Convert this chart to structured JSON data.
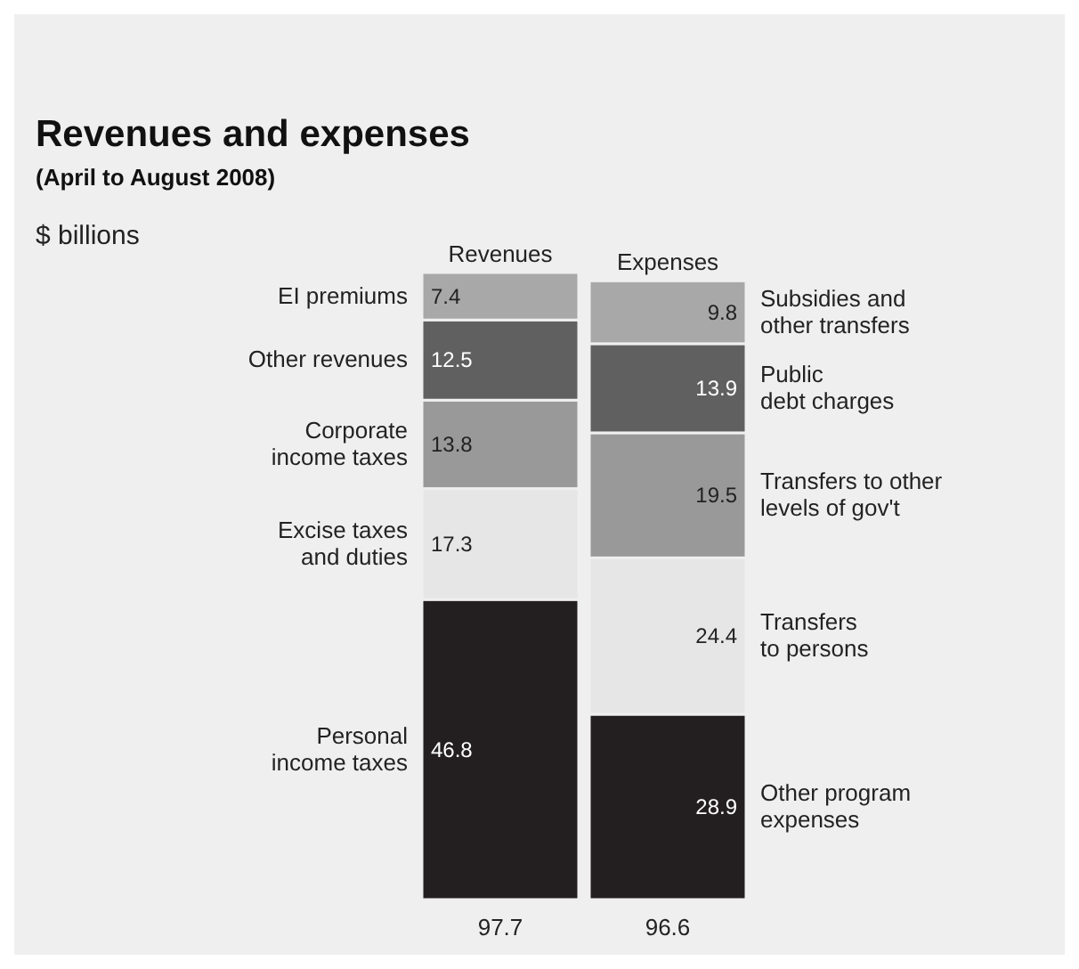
{
  "chart_data": {
    "type": "bar",
    "title": "Revenues and expenses",
    "subtitle": "(April to August 2008)",
    "annotations": [
      "$ billions"
    ],
    "categories": [
      "Revenues",
      "Expenses"
    ],
    "stacked": true,
    "data_labels": true,
    "totals": [
      "97.7",
      "96.6"
    ],
    "series": [
      {
        "name": "Personal\nincome taxes",
        "color": "#231f20",
        "values": [
          46.8,
          null
        ]
      },
      {
        "name": "Excise taxes\nand duties",
        "color": "#e6e6e6",
        "values": [
          17.3,
          null
        ]
      },
      {
        "name": "Corporate\nincome taxes",
        "color": "#999999",
        "values": [
          13.8,
          null
        ]
      },
      {
        "name": "Other revenues",
        "color": "#606060",
        "values": [
          12.5,
          null
        ]
      },
      {
        "name": "EI premiums",
        "color": "#a8a8a8",
        "values": [
          7.4,
          null
        ]
      },
      {
        "name": "Other program\nexpenses",
        "color": "#231f20",
        "values": [
          null,
          28.9
        ]
      },
      {
        "name": "Transfers\nto persons",
        "color": "#e6e6e6",
        "values": [
          null,
          24.4
        ]
      },
      {
        "name": "Transfers to other\nlevels of gov't",
        "color": "#999999",
        "values": [
          null,
          19.5
        ]
      },
      {
        "name": "Public\ndebt charges",
        "color": "#606060",
        "values": [
          null,
          13.9
        ]
      },
      {
        "name": "Subsidies and\nother transfers",
        "color": "#a8a8a8",
        "values": [
          null,
          9.8
        ]
      }
    ]
  }
}
